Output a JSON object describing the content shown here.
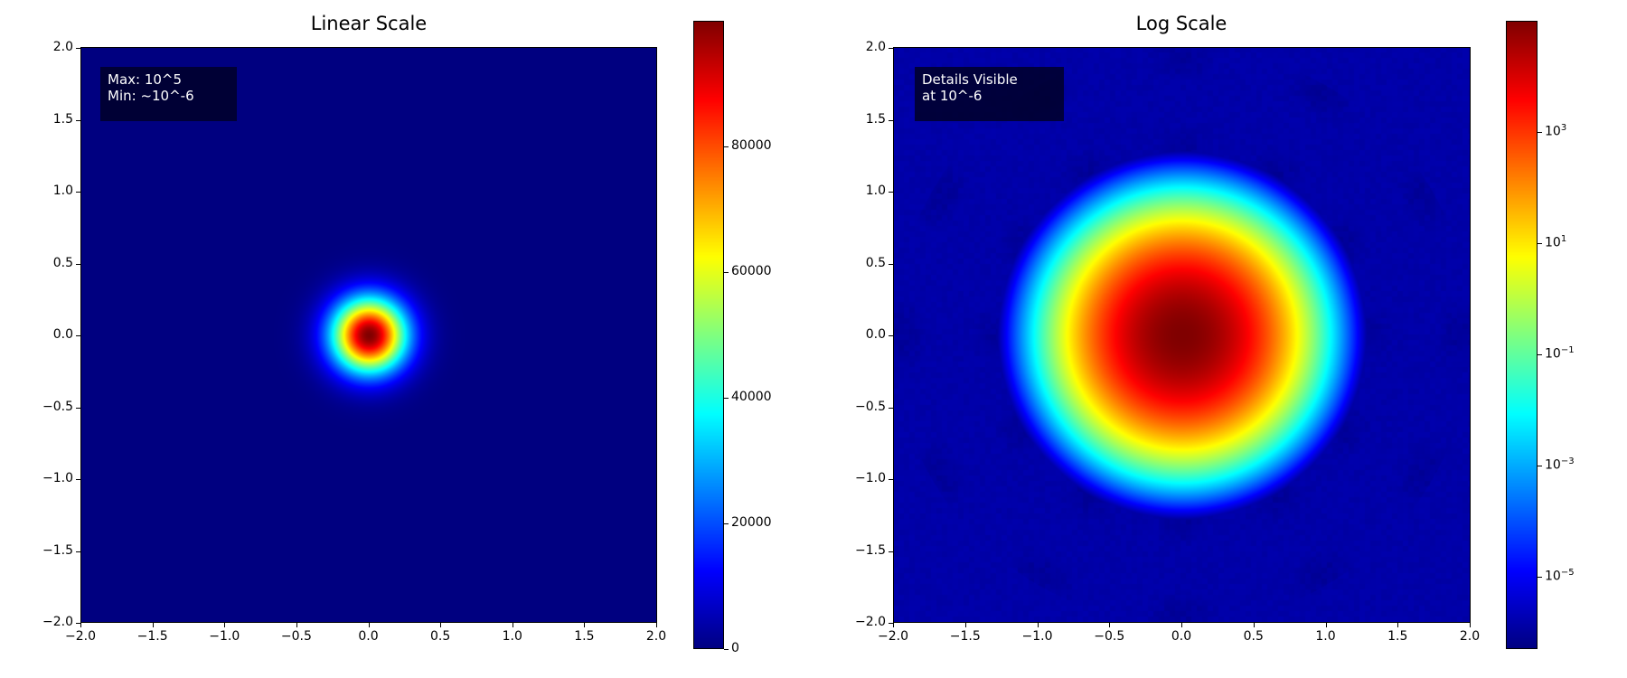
{
  "chart_data": [
    {
      "type": "heatmap",
      "title": "Linear Scale",
      "xlim": [
        -2.0,
        2.0
      ],
      "ylim": [
        -2.0,
        2.0
      ],
      "xticks": [
        "−2.0",
        "−1.5",
        "−1.0",
        "−0.5",
        "0.0",
        "0.5",
        "1.0",
        "1.5",
        "2.0"
      ],
      "yticks": [
        "−2.0",
        "−1.5",
        "−1.0",
        "−0.5",
        "0.0",
        "0.5",
        "1.0",
        "1.5",
        "2.0"
      ],
      "colormap": "jet",
      "scale": "linear",
      "function": "gaussian peak centered at (0,0), sigma ≈ 0.18",
      "peak_value": 100000,
      "min_value": 1e-06,
      "sigma": 0.18,
      "colorbar": {
        "range": [
          0,
          100000
        ],
        "ticks": [
          0,
          20000,
          40000,
          60000,
          80000
        ],
        "tick_labels": [
          "0",
          "20000",
          "40000",
          "60000",
          "80000"
        ]
      },
      "annotation": [
        "Max: 10^5",
        "Min: ~10^-6"
      ]
    },
    {
      "type": "heatmap",
      "title": "Log Scale",
      "xlim": [
        -2.0,
        2.0
      ],
      "ylim": [
        -2.0,
        2.0
      ],
      "xticks": [
        "−2.0",
        "−1.5",
        "−1.0",
        "−0.5",
        "0.0",
        "0.5",
        "1.0",
        "1.5",
        "2.0"
      ],
      "yticks": [
        "−2.0",
        "−1.5",
        "−1.0",
        "−0.5",
        "0.0",
        "0.5",
        "1.0",
        "1.5",
        "2.0"
      ],
      "colormap": "jet",
      "scale": "log",
      "peak_value": 100000,
      "min_value": 1e-06,
      "sigma": 0.18,
      "colorbar": {
        "log_range": [
          -6.3,
          5.0
        ],
        "ticks_exp": [
          3,
          1,
          -1,
          -3,
          -5
        ],
        "tick_labels": [
          "10",
          "10",
          "10",
          "10",
          "10"
        ],
        "tick_sups": [
          "3",
          "1",
          "−1",
          "−3",
          "−5"
        ]
      },
      "annotation": [
        "Details Visible",
        "at 10^-6"
      ]
    }
  ]
}
